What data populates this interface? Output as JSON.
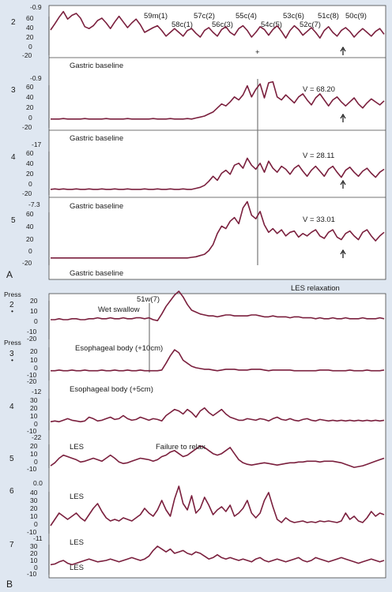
{
  "chart_data": [
    {
      "type": "line",
      "panel_label": "A",
      "columns": [
        "59m(1)",
        "58c(1)",
        "57c(2)",
        "56c(3)",
        "55c(4)",
        "54c(5)",
        "53c(6)",
        "52c(7)",
        "51c(8)",
        "50c(9)"
      ],
      "marker": "+",
      "channels": [
        {
          "name": "2",
          "top_label": "-0.9",
          "yticks": [
            "60",
            "40",
            "20",
            "0",
            "-20"
          ],
          "annotation": "",
          "baseline_label": "Gastric baseline",
          "values": [
            35,
            48,
            62,
            74,
            58,
            66,
            70,
            60,
            42,
            38,
            44,
            55,
            60,
            50,
            38,
            52,
            64,
            52,
            40,
            50,
            58,
            46,
            30,
            35,
            40,
            44,
            34,
            22,
            30,
            38,
            30,
            22,
            34,
            38,
            28,
            20,
            34,
            40,
            30,
            22,
            36,
            42,
            30,
            24,
            38,
            44,
            34,
            20,
            30,
            42,
            36,
            24,
            36,
            44,
            32,
            18,
            34,
            44,
            36,
            24,
            32,
            40,
            30,
            18,
            34,
            42,
            30,
            22,
            34,
            40,
            32,
            20,
            30,
            38,
            30,
            22,
            32,
            38,
            26
          ]
        },
        {
          "name": "3",
          "top_label": "-0.9",
          "yticks": [
            "60",
            "40",
            "20",
            "0",
            "-20"
          ],
          "annotation": "V = 68.20",
          "baseline_label": "Gastric baseline",
          "values": [
            -4,
            -4,
            -4,
            -3,
            -4,
            -4,
            -4,
            -4,
            -3,
            -4,
            -4,
            -4,
            -4,
            -3,
            -4,
            -4,
            -4,
            -4,
            -3,
            -4,
            -4,
            -4,
            -4,
            -4,
            -3,
            -4,
            -4,
            -4,
            -3,
            -4,
            -4,
            -4,
            -3,
            -4,
            -2,
            0,
            2,
            6,
            10,
            18,
            26,
            22,
            30,
            40,
            34,
            44,
            62,
            40,
            55,
            66,
            38,
            68,
            70,
            40,
            34,
            44,
            36,
            28,
            40,
            46,
            34,
            24,
            38,
            46,
            34,
            22,
            34,
            40,
            30,
            22,
            30,
            38,
            26,
            18,
            28,
            36,
            30,
            24,
            32
          ]
        },
        {
          "name": "4",
          "top_label": "-17",
          "yticks": [
            "60",
            "40",
            "20",
            "0",
            "-20"
          ],
          "annotation": "V = 28.11",
          "baseline_label": "Gastric baseline",
          "values": [
            -12,
            -11,
            -12,
            -11,
            -12,
            -12,
            -11,
            -12,
            -12,
            -11,
            -12,
            -12,
            -11,
            -12,
            -12,
            -11,
            -12,
            -12,
            -11,
            -12,
            -12,
            -12,
            -11,
            -12,
            -12,
            -11,
            -12,
            -12,
            -11,
            -12,
            -12,
            -11,
            -12,
            -12,
            -10,
            -8,
            -4,
            4,
            14,
            6,
            20,
            26,
            18,
            36,
            40,
            30,
            50,
            36,
            28,
            40,
            22,
            44,
            30,
            22,
            34,
            28,
            18,
            30,
            36,
            24,
            14,
            26,
            34,
            24,
            14,
            28,
            34,
            22,
            12,
            26,
            32,
            22,
            14,
            24,
            30,
            20,
            12,
            22,
            28
          ]
        },
        {
          "name": "5",
          "top_label": "-7.3",
          "yticks": [
            "60",
            "40",
            "20",
            "0",
            "-20"
          ],
          "annotation": "V = 33.01",
          "baseline_label": "Gastric baseline",
          "values": [
            -12,
            -12,
            -12,
            -12,
            -12,
            -12,
            -12,
            -12,
            -12,
            -12,
            -12,
            -12,
            -12,
            -12,
            -12,
            -12,
            -12,
            -12,
            -12,
            -12,
            -12,
            -12,
            -12,
            -12,
            -12,
            -12,
            -12,
            -12,
            -12,
            -12,
            -12,
            -12,
            -12,
            -11,
            -10,
            -8,
            -6,
            0,
            10,
            28,
            40,
            36,
            48,
            54,
            44,
            70,
            80,
            58,
            52,
            64,
            42,
            30,
            36,
            28,
            34,
            24,
            30,
            32,
            22,
            28,
            24,
            30,
            34,
            24,
            20,
            30,
            34,
            22,
            18,
            28,
            32,
            24,
            18,
            30,
            34,
            24,
            16,
            24,
            30
          ]
        }
      ]
    },
    {
      "type": "line",
      "panel_label": "B",
      "title": "LES relaxation",
      "swallow_label": "51w(7)",
      "channels": [
        {
          "name": "2",
          "press_label": "Press",
          "yticks": [
            "20",
            "10",
            "0",
            "-10",
            "-20"
          ],
          "annotation": "Wet swallow",
          "values": [
            0,
            0,
            1,
            0,
            0,
            1,
            1,
            0,
            0,
            1,
            1,
            2,
            1,
            1,
            2,
            1,
            1,
            2,
            1,
            1,
            2,
            2,
            1,
            2,
            0,
            -1,
            6,
            14,
            20,
            26,
            30,
            24,
            16,
            10,
            8,
            6,
            5,
            4,
            4,
            3,
            4,
            5,
            5,
            4,
            4,
            4,
            4,
            5,
            5,
            4,
            3,
            3,
            4,
            3,
            3,
            3,
            2,
            3,
            3,
            2,
            2,
            2,
            1,
            2,
            1,
            1,
            2,
            1,
            1,
            2,
            1,
            1,
            1,
            2,
            1,
            1,
            1,
            2,
            1
          ]
        },
        {
          "name": "3",
          "press_label": "Press",
          "yticks": [
            "20",
            "10",
            "0",
            "-10",
            "-20"
          ],
          "annotation": "Esophageal body (+10cm)",
          "values": [
            -6,
            -6,
            -5,
            -6,
            -6,
            -5,
            -6,
            -6,
            -5,
            -6,
            -6,
            -6,
            -5,
            -6,
            -6,
            -5,
            -6,
            -6,
            -5,
            -6,
            -6,
            -5,
            -6,
            -6,
            -6,
            -6,
            -5,
            4,
            14,
            22,
            18,
            8,
            4,
            0,
            -2,
            -3,
            -4,
            -4,
            -5,
            -6,
            -5,
            -4,
            -4,
            -4,
            -5,
            -5,
            -5,
            -4,
            -4,
            -4,
            -5,
            -6,
            -5,
            -5,
            -5,
            -5,
            -5,
            -6,
            -6,
            -6,
            -6,
            -6,
            -6,
            -5,
            -5,
            -5,
            -6,
            -6,
            -6,
            -6,
            -5,
            -6,
            -6,
            -6,
            -5,
            -6,
            -6,
            -6,
            -5
          ]
        },
        {
          "name": "4",
          "top_label": "-12",
          "yticks": [
            "30",
            "20",
            "10",
            "0",
            "-10"
          ],
          "annotation": "Esophageal body (+5cm)",
          "values": [
            2,
            3,
            2,
            4,
            6,
            4,
            3,
            2,
            3,
            8,
            6,
            3,
            4,
            6,
            8,
            5,
            6,
            10,
            6,
            4,
            5,
            8,
            6,
            4,
            6,
            5,
            3,
            10,
            14,
            18,
            16,
            12,
            18,
            14,
            8,
            16,
            20,
            14,
            10,
            14,
            18,
            12,
            8,
            6,
            4,
            4,
            6,
            5,
            4,
            6,
            5,
            3,
            6,
            8,
            5,
            4,
            6,
            4,
            3,
            5,
            6,
            4,
            3,
            5,
            4,
            3,
            4,
            3,
            4,
            3,
            4,
            3,
            4,
            3,
            4,
            3,
            4,
            3,
            4
          ]
        },
        {
          "name": "5",
          "top_label": "-22",
          "yticks": [
            "20",
            "10",
            "0",
            "-10"
          ],
          "annotation": "LES",
          "extra_annotation": "Failure to relax",
          "values": [
            -6,
            -2,
            4,
            8,
            6,
            4,
            2,
            -1,
            0,
            2,
            4,
            2,
            0,
            4,
            8,
            4,
            -1,
            -3,
            -2,
            0,
            2,
            4,
            3,
            2,
            0,
            2,
            6,
            8,
            12,
            14,
            10,
            6,
            8,
            12,
            16,
            20,
            18,
            14,
            10,
            8,
            10,
            14,
            18,
            10,
            2,
            -2,
            -4,
            -5,
            -4,
            -3,
            -2,
            -3,
            -4,
            -5,
            -4,
            -3,
            -2,
            -2,
            -1,
            -1,
            0,
            0,
            0,
            -1,
            0,
            0,
            0,
            -1,
            -2,
            -4,
            -6,
            -8,
            -7,
            -6,
            -4,
            -2,
            0,
            2,
            4
          ]
        },
        {
          "name": "6",
          "top_label": "0.0",
          "yticks": [
            "40",
            "30",
            "20",
            "10",
            "0",
            "-10"
          ],
          "annotation": "LES",
          "values": [
            -2,
            6,
            14,
            10,
            6,
            10,
            14,
            8,
            4,
            12,
            20,
            26,
            16,
            8,
            4,
            6,
            4,
            8,
            6,
            4,
            8,
            12,
            20,
            14,
            10,
            18,
            30,
            18,
            10,
            32,
            48,
            26,
            18,
            36,
            14,
            20,
            34,
            24,
            12,
            18,
            22,
            16,
            24,
            10,
            14,
            20,
            30,
            14,
            8,
            14,
            30,
            40,
            22,
            6,
            2,
            8,
            4,
            2,
            3,
            4,
            2,
            3,
            2,
            4,
            3,
            4,
            3,
            2,
            4,
            14,
            6,
            10,
            4,
            2,
            8,
            16,
            10,
            14,
            12
          ]
        },
        {
          "name": "7",
          "top_label": "-11",
          "yticks": [
            "30",
            "20",
            "10",
            "0",
            "-10"
          ],
          "annotation": "LES",
          "bottom_annotation": "LES",
          "values": [
            4,
            5,
            8,
            10,
            6,
            4,
            6,
            8,
            10,
            12,
            10,
            8,
            9,
            10,
            12,
            10,
            8,
            10,
            12,
            14,
            12,
            10,
            12,
            16,
            24,
            30,
            26,
            22,
            26,
            20,
            22,
            24,
            20,
            18,
            22,
            20,
            16,
            12,
            14,
            18,
            14,
            12,
            14,
            12,
            10,
            12,
            10,
            8,
            12,
            14,
            10,
            8,
            10,
            12,
            10,
            8,
            10,
            12,
            14,
            10,
            8,
            10,
            14,
            12,
            10,
            8,
            10,
            12,
            14,
            12,
            10,
            8,
            6,
            8,
            10,
            12,
            10,
            8,
            10
          ]
        }
      ]
    }
  ]
}
